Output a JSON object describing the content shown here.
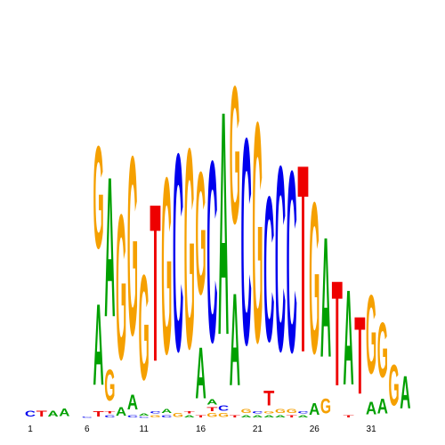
{
  "chart_data": {
    "type": "sequence-logo",
    "title": "",
    "xlabel": "",
    "ylabel": "",
    "alphabet": [
      "A",
      "C",
      "G",
      "T"
    ],
    "colors": {
      "A": "#00a000",
      "C": "#0000ee",
      "G": "#f5a000",
      "T": "#ee0000"
    },
    "tick_labels": [
      {
        "position": 1,
        "label": "1"
      },
      {
        "position": 6,
        "label": "6"
      },
      {
        "position": 11,
        "label": "11"
      },
      {
        "position": 16,
        "label": "16"
      },
      {
        "position": 21,
        "label": "21"
      },
      {
        "position": 26,
        "label": "26"
      },
      {
        "position": 31,
        "label": "31"
      }
    ],
    "ylim": [
      0,
      2
    ],
    "positions": [
      {
        "pos": 1,
        "letters": [
          [
            "C",
            0.045
          ]
        ]
      },
      {
        "pos": 2,
        "letters": [
          [
            "T",
            0.045
          ]
        ]
      },
      {
        "pos": 3,
        "letters": [
          [
            "A",
            0.045
          ]
        ]
      },
      {
        "pos": 4,
        "letters": [
          [
            "A",
            0.06
          ]
        ]
      },
      {
        "pos": 5,
        "letters": []
      },
      {
        "pos": 6,
        "letters": [
          [
            "C",
            0.01
          ]
        ]
      },
      {
        "pos": 7,
        "letters": [
          [
            "G",
            0.82
          ],
          [
            "A",
            0.65
          ],
          [
            "T",
            0.04
          ]
        ]
      },
      {
        "pos": 8,
        "letters": [
          [
            "A",
            1.12
          ],
          [
            "G",
            0.25
          ],
          [
            "C",
            0.02
          ],
          [
            "T",
            0.02
          ]
        ]
      },
      {
        "pos": 9,
        "letters": [
          [
            "G",
            1.16
          ],
          [
            "A",
            0.07
          ]
        ]
      },
      {
        "pos": 10,
        "letters": [
          [
            "G",
            1.43
          ],
          [
            "A",
            0.12
          ],
          [
            "C",
            0.02
          ]
        ]
      },
      {
        "pos": 11,
        "letters": [
          [
            "G",
            0.84
          ],
          [
            "A",
            0.02
          ],
          [
            "C",
            0.01
          ]
        ]
      },
      {
        "pos": 12,
        "letters": [
          [
            "T",
            1.26
          ],
          [
            "G",
            0.02
          ],
          [
            "C",
            0.02
          ]
        ]
      },
      {
        "pos": 13,
        "letters": [
          [
            "G",
            1.41
          ],
          [
            "A",
            0.03
          ],
          [
            "C",
            0.02
          ]
        ]
      },
      {
        "pos": 14,
        "letters": [
          [
            "C",
            1.58
          ],
          [
            "G",
            0.03
          ]
        ]
      },
      {
        "pos": 15,
        "letters": [
          [
            "G",
            1.6
          ],
          [
            "A",
            0.02
          ],
          [
            "T",
            0.02
          ]
        ]
      },
      {
        "pos": 16,
        "letters": [
          [
            "G",
            0.98
          ],
          [
            "A",
            0.41
          ],
          [
            "T",
            0.02
          ]
        ]
      },
      {
        "pos": 17,
        "letters": [
          [
            "C",
            1.45
          ],
          [
            "A",
            0.04
          ],
          [
            "G",
            0.03
          ],
          [
            "T",
            0.03
          ]
        ]
      },
      {
        "pos": 18,
        "letters": [
          [
            "A",
            1.79
          ],
          [
            "C",
            0.04
          ],
          [
            "G",
            0.03
          ]
        ]
      },
      {
        "pos": 19,
        "letters": [
          [
            "G",
            1.1
          ],
          [
            "A",
            0.74
          ],
          [
            "T",
            0.02
          ]
        ]
      },
      {
        "pos": 20,
        "letters": [
          [
            "C",
            1.65
          ],
          [
            "G",
            0.03
          ],
          [
            "A",
            0.02
          ]
        ]
      },
      {
        "pos": 21,
        "letters": [
          [
            "G",
            1.76
          ],
          [
            "A",
            0.02
          ],
          [
            "C",
            0.02
          ]
        ]
      },
      {
        "pos": 22,
        "letters": [
          [
            "C",
            1.16
          ],
          [
            "T",
            0.12
          ],
          [
            "A",
            0.02
          ],
          [
            "G",
            0.02
          ]
        ]
      },
      {
        "pos": 23,
        "letters": [
          [
            "C",
            1.48
          ],
          [
            "G",
            0.03
          ],
          [
            "A",
            0.02
          ]
        ]
      },
      {
        "pos": 24,
        "letters": [
          [
            "C",
            1.45
          ],
          [
            "G",
            0.03
          ],
          [
            "T",
            0.02
          ]
        ]
      },
      {
        "pos": 25,
        "letters": [
          [
            "T",
            1.5
          ],
          [
            "A",
            0.02
          ],
          [
            "C",
            0.02
          ]
        ]
      },
      {
        "pos": 26,
        "letters": [
          [
            "G",
            1.21
          ],
          [
            "A",
            0.09
          ]
        ]
      },
      {
        "pos": 27,
        "letters": [
          [
            "A",
            0.96
          ],
          [
            "G",
            0.12
          ]
        ]
      },
      {
        "pos": 28,
        "letters": [
          [
            "T",
            0.84
          ]
        ]
      },
      {
        "pos": 29,
        "letters": [
          [
            "A",
            0.76
          ],
          [
            "T",
            0.02
          ]
        ]
      },
      {
        "pos": 30,
        "letters": [
          [
            "T",
            0.62
          ]
        ]
      },
      {
        "pos": 31,
        "letters": [
          [
            "G",
            0.63
          ],
          [
            "A",
            0.1
          ]
        ]
      },
      {
        "pos": 32,
        "letters": [
          [
            "G",
            0.44
          ],
          [
            "A",
            0.12
          ]
        ]
      },
      {
        "pos": 33,
        "letters": [
          [
            "G",
            0.33
          ]
        ]
      },
      {
        "pos": 34,
        "letters": [
          [
            "A",
            0.26
          ]
        ]
      }
    ]
  }
}
